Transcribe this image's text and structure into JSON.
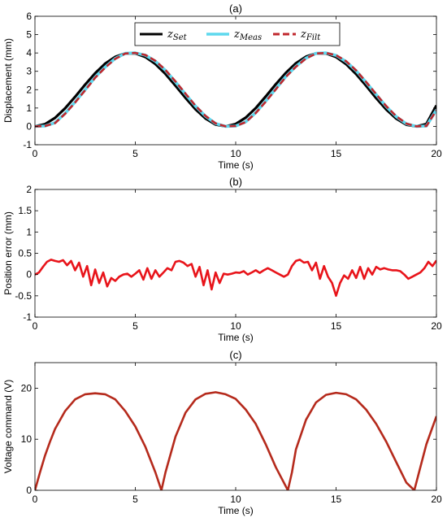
{
  "chart_data": [
    {
      "panel": "(a)",
      "type": "line",
      "xlabel": "Time (s)",
      "ylabel": "Displacement (mm)",
      "xlim": [
        0,
        20
      ],
      "ylim": [
        -1,
        6
      ],
      "xticks": [
        0,
        5,
        10,
        15,
        20
      ],
      "yticks": [
        -1,
        0,
        1,
        2,
        3,
        4,
        5,
        6
      ],
      "grid": false,
      "legend": "top-center",
      "x": [
        0,
        0.5,
        1,
        1.5,
        2,
        2.5,
        3,
        3.5,
        4,
        4.5,
        5,
        5.5,
        6,
        6.5,
        7,
        7.5,
        8,
        8.5,
        9,
        9.5,
        10,
        10.5,
        11,
        11.5,
        12,
        12.5,
        13,
        13.5,
        14,
        14.5,
        15,
        15.5,
        16,
        16.5,
        17,
        17.5,
        18,
        18.5,
        19,
        19.5,
        20
      ],
      "series": [
        {
          "name": "z",
          "sub": "Set",
          "color": "#000000",
          "style": "solid",
          "values": [
            0.0,
            0.12,
            0.46,
            0.98,
            1.61,
            2.28,
            2.9,
            3.42,
            3.79,
            3.98,
            3.98,
            3.78,
            3.4,
            2.86,
            2.22,
            1.55,
            0.93,
            0.43,
            0.1,
            0.0,
            0.13,
            0.48,
            1.0,
            1.63,
            2.3,
            2.92,
            3.44,
            3.8,
            3.98,
            3.98,
            3.78,
            3.39,
            2.85,
            2.21,
            1.54,
            0.92,
            0.42,
            0.09,
            0.0,
            0.13,
            1.14
          ]
        },
        {
          "name": "z",
          "sub": "Meas",
          "color": "#5ed8ee",
          "style": "solid",
          "values": [
            0.0,
            0.02,
            0.2,
            0.7,
            1.33,
            2.0,
            2.68,
            3.23,
            3.7,
            3.98,
            4.0,
            3.88,
            3.55,
            3.05,
            2.42,
            1.75,
            1.1,
            0.55,
            0.15,
            0.0,
            0.02,
            0.25,
            0.75,
            1.38,
            2.05,
            2.72,
            3.27,
            3.72,
            3.98,
            4.0,
            3.87,
            3.53,
            3.03,
            2.4,
            1.73,
            1.08,
            0.53,
            0.14,
            0.0,
            0.02,
            0.9
          ]
        },
        {
          "name": "z",
          "sub": "Filt",
          "color": "#c0272d",
          "style": "dashed",
          "values": [
            0.0,
            0.02,
            0.18,
            0.68,
            1.3,
            1.97,
            2.65,
            3.2,
            3.68,
            3.97,
            4.0,
            3.89,
            3.57,
            3.07,
            2.45,
            1.78,
            1.12,
            0.57,
            0.16,
            0.0,
            0.02,
            0.23,
            0.73,
            1.35,
            2.02,
            2.7,
            3.25,
            3.7,
            3.97,
            4.0,
            3.88,
            3.55,
            3.05,
            2.42,
            1.75,
            1.1,
            0.55,
            0.15,
            0.0,
            0.02,
            0.88
          ]
        }
      ]
    },
    {
      "panel": "(b)",
      "type": "line",
      "xlabel": "Time (s)",
      "ylabel": "Position error (mm)",
      "xlim": [
        0,
        20
      ],
      "ylim": [
        -1,
        2
      ],
      "xticks": [
        0,
        5,
        10,
        15,
        20
      ],
      "yticks": [
        -1,
        -0.5,
        0,
        0.5,
        1,
        1.5,
        2
      ],
      "ytick_labels": [
        "-1",
        "-0.5",
        "0",
        "0.5",
        "1",
        "1.5",
        "2"
      ],
      "grid": false,
      "x": [
        0,
        0.2,
        0.4,
        0.6,
        0.8,
        1.0,
        1.2,
        1.4,
        1.6,
        1.8,
        2.0,
        2.2,
        2.4,
        2.6,
        2.8,
        3.0,
        3.2,
        3.4,
        3.6,
        3.8,
        4.0,
        4.2,
        4.4,
        4.6,
        4.8,
        5.0,
        5.2,
        5.4,
        5.6,
        5.8,
        6.0,
        6.2,
        6.4,
        6.6,
        6.8,
        7.0,
        7.2,
        7.4,
        7.6,
        7.8,
        8.0,
        8.2,
        8.4,
        8.6,
        8.8,
        9.0,
        9.2,
        9.4,
        9.6,
        9.8,
        10.0,
        10.2,
        10.4,
        10.6,
        10.8,
        11.0,
        11.2,
        11.4,
        11.6,
        11.8,
        12.0,
        12.2,
        12.4,
        12.6,
        12.8,
        13.0,
        13.2,
        13.4,
        13.6,
        13.8,
        14.0,
        14.2,
        14.4,
        14.6,
        14.8,
        15.0,
        15.2,
        15.4,
        15.6,
        15.8,
        16.0,
        16.2,
        16.4,
        16.6,
        16.8,
        17.0,
        17.2,
        17.4,
        17.6,
        17.8,
        18.0,
        18.2,
        18.4,
        18.6,
        18.8,
        19.0,
        19.2,
        19.4,
        19.6,
        19.8,
        20.0
      ],
      "series": [
        {
          "name": "",
          "color": "#e8141a",
          "style": "solid",
          "values": [
            0.0,
            0.05,
            0.18,
            0.3,
            0.35,
            0.32,
            0.3,
            0.34,
            0.22,
            0.32,
            0.1,
            0.28,
            -0.05,
            0.2,
            -0.25,
            0.12,
            -0.2,
            0.05,
            -0.28,
            -0.08,
            -0.15,
            -0.05,
            0.0,
            0.02,
            -0.05,
            0.02,
            0.1,
            -0.12,
            0.15,
            -0.1,
            0.1,
            -0.05,
            0.05,
            0.15,
            0.1,
            0.3,
            0.32,
            0.28,
            0.2,
            0.25,
            -0.05,
            0.18,
            -0.25,
            0.1,
            -0.35,
            0.05,
            -0.2,
            0.02,
            0.0,
            0.02,
            0.05,
            0.04,
            0.08,
            0.0,
            0.05,
            0.1,
            0.04,
            0.1,
            0.15,
            0.1,
            0.05,
            0.0,
            -0.05,
            0.0,
            0.2,
            0.32,
            0.35,
            0.28,
            0.3,
            0.1,
            0.28,
            -0.1,
            0.2,
            -0.05,
            -0.2,
            -0.5,
            -0.2,
            -0.02,
            -0.1,
            0.1,
            -0.08,
            0.18,
            -0.1,
            0.15,
            0.0,
            0.18,
            0.12,
            0.15,
            0.12,
            0.1,
            0.1,
            0.08,
            0.0,
            -0.1,
            -0.05,
            0.0,
            0.05,
            0.15,
            0.3,
            0.2,
            0.33
          ]
        }
      ]
    },
    {
      "panel": "(c)",
      "type": "line",
      "xlabel": "Time (s)",
      "ylabel": "Voltage command (V)",
      "xlim": [
        0,
        20
      ],
      "ylim": [
        0,
        25
      ],
      "xticks": [
        0,
        5,
        10,
        15,
        20
      ],
      "yticks": [
        0,
        10,
        20
      ],
      "grid": false,
      "x": [
        0,
        0.25,
        0.5,
        0.75,
        1.0,
        1.5,
        2.0,
        2.5,
        3.0,
        3.5,
        4.0,
        4.5,
        5.0,
        5.5,
        6.0,
        6.3,
        6.5,
        7.0,
        7.5,
        8.0,
        8.5,
        9.0,
        9.5,
        10.0,
        10.5,
        11.0,
        11.5,
        12.0,
        12.6,
        12.8,
        13.0,
        13.5,
        14.0,
        14.5,
        15.0,
        15.5,
        16.0,
        16.5,
        17.0,
        17.5,
        18.0,
        18.5,
        18.9,
        19.2,
        19.5,
        20.0
      ],
      "series": [
        {
          "name": "",
          "color": "#b52a1c",
          "style": "solid",
          "values": [
            0.0,
            3.5,
            6.8,
            9.5,
            12.0,
            15.5,
            17.8,
            18.8,
            19.0,
            18.8,
            17.8,
            15.5,
            12.5,
            8.5,
            3.5,
            0.0,
            3.5,
            10.5,
            15.2,
            17.8,
            18.9,
            19.2,
            18.8,
            17.9,
            15.8,
            13.0,
            9.0,
            4.5,
            0.0,
            3.5,
            8.0,
            13.8,
            17.2,
            18.7,
            19.1,
            18.8,
            17.8,
            15.8,
            13.0,
            9.5,
            5.5,
            1.5,
            0.0,
            4.5,
            9.0,
            14.5
          ]
        }
      ]
    }
  ]
}
